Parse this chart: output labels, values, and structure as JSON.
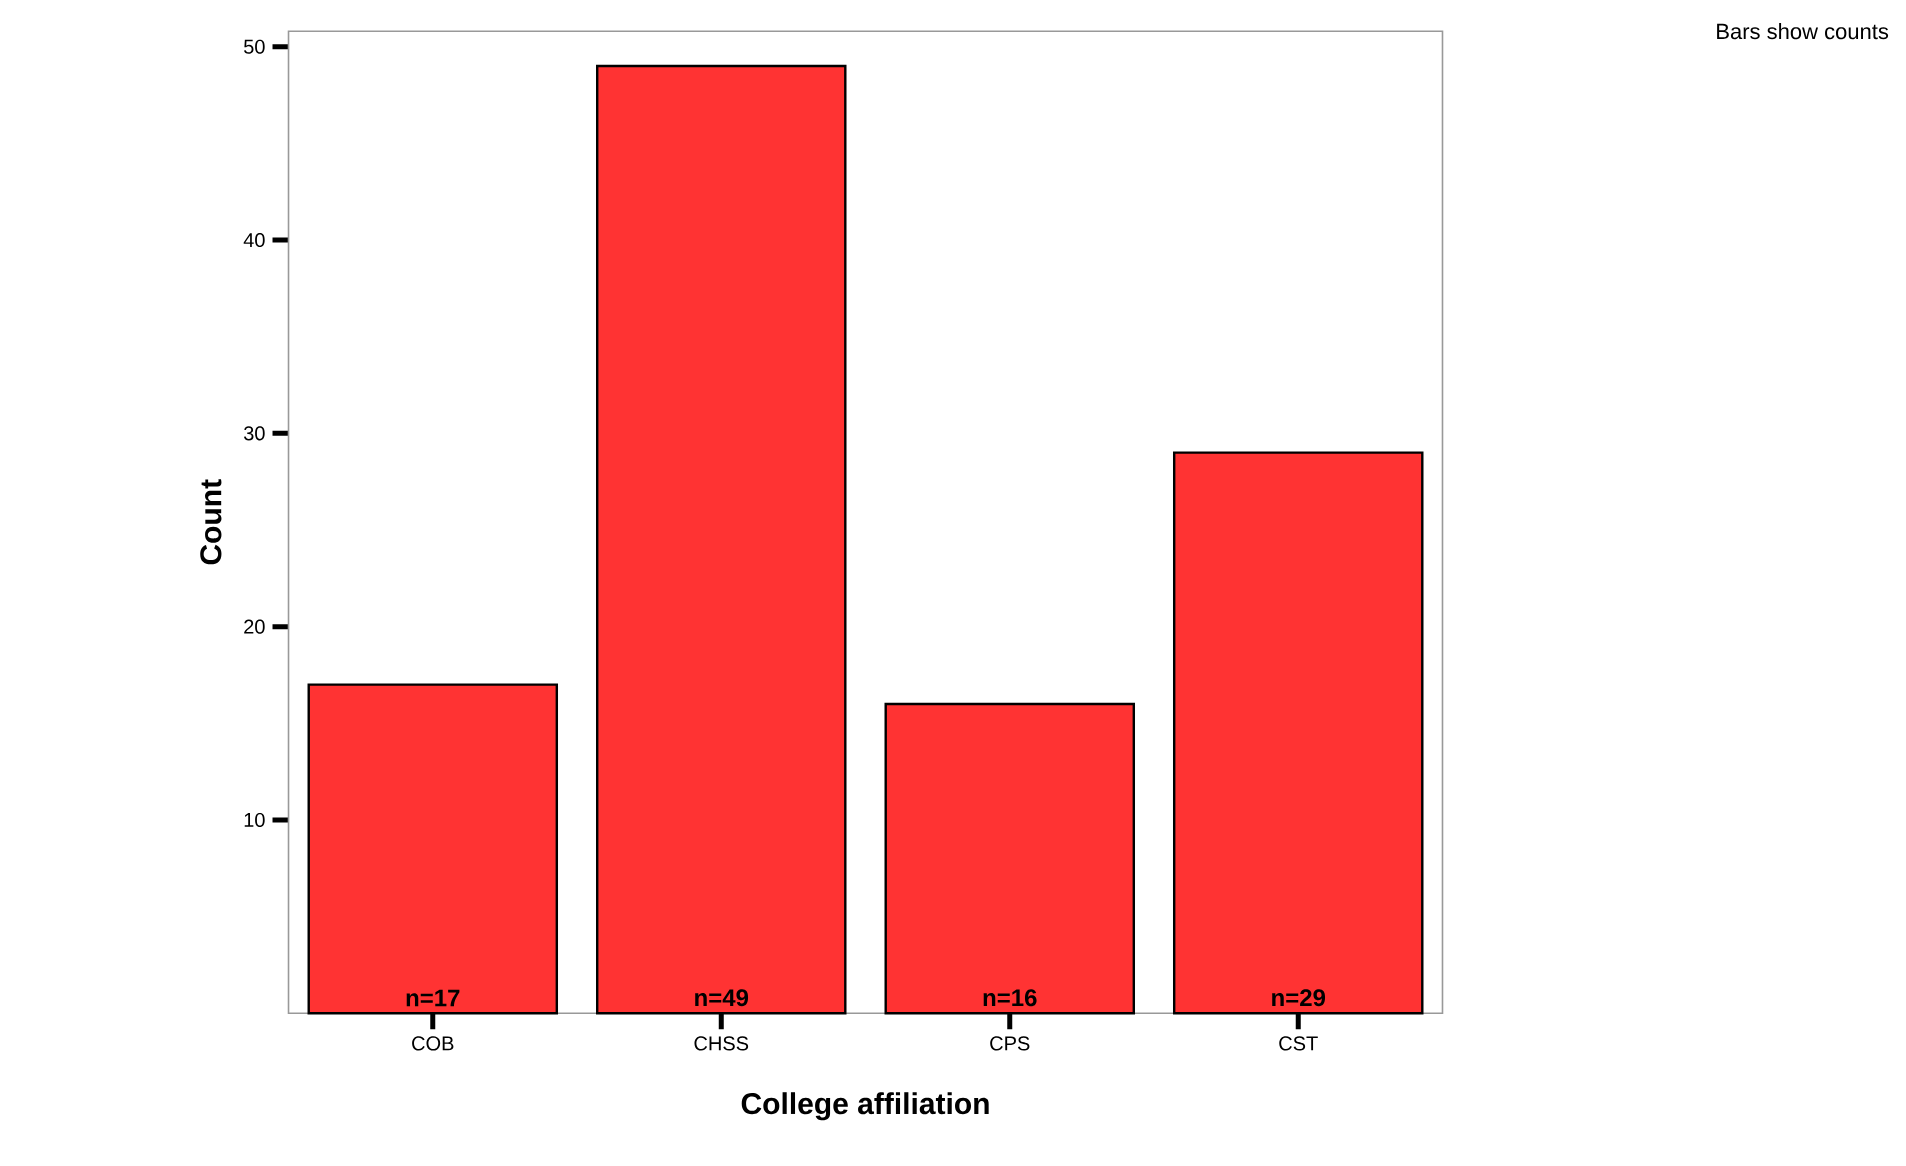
{
  "chart_data": {
    "type": "bar",
    "xlabel": "College affiliation",
    "ylabel": "Count",
    "categories": [
      "COB",
      "CHSS",
      "CPS",
      "CST"
    ],
    "values": [
      17,
      49,
      16,
      29
    ],
    "value_labels": [
      "n=17",
      "n=49",
      "n=16",
      "n=29"
    ],
    "color": "#ff3333",
    "ylim": [
      0,
      50.8
    ],
    "yticks": [
      10,
      20,
      30,
      40,
      50
    ],
    "annotations": [
      "Bars show counts"
    ]
  }
}
